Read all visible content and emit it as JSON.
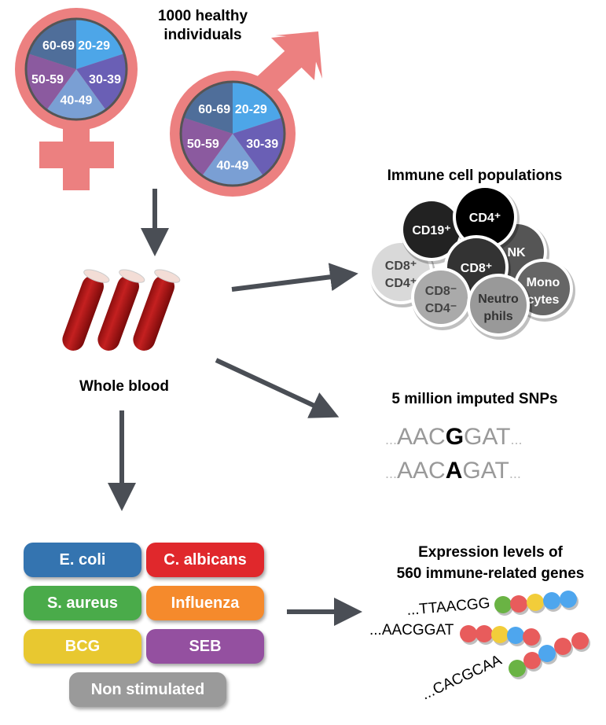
{
  "cohort": {
    "title_line1": "1000 healthy",
    "title_line2": "individuals",
    "age_groups": [
      "20-29",
      "30-39",
      "40-49",
      "50-59",
      "60-69"
    ],
    "age_colors": [
      "#4da6e8",
      "#6a5fb5",
      "#7a9fd4",
      "#8b5a9f",
      "#4f6e9a"
    ],
    "symbol_color": "#ec8080"
  },
  "blood": {
    "label": "Whole blood"
  },
  "cells": {
    "title": "Immune cell populations",
    "items": [
      {
        "l1": "CD8⁺",
        "l2": "CD4⁺",
        "fill": "#d9d9d9",
        "text": "#444"
      },
      {
        "l1": "CD19⁺",
        "l2": "",
        "fill": "#222222",
        "text": "#fff"
      },
      {
        "l1": "NK",
        "l2": "",
        "fill": "#555555",
        "text": "#fff"
      },
      {
        "l1": "CD4⁺",
        "l2": "",
        "fill": "#000000",
        "text": "#fff"
      },
      {
        "l1": "CD8⁺",
        "l2": "",
        "fill": "#333333",
        "text": "#fff"
      },
      {
        "l1": "CD8⁻",
        "l2": "CD4⁻",
        "fill": "#aaaaaa",
        "text": "#444"
      },
      {
        "l1": "Mono",
        "l2": "cytes",
        "fill": "#666666",
        "text": "#fff"
      },
      {
        "l1": "Neutro",
        "l2": "phils",
        "fill": "#999999",
        "text": "#333"
      }
    ]
  },
  "snps": {
    "title": "5 million imputed SNPs",
    "seq1": {
      "pre": "AAC",
      "allele": "G",
      "post": "GAT"
    },
    "seq2": {
      "pre": "AAC",
      "allele": "A",
      "post": "GAT"
    },
    "ellipsis": "..."
  },
  "stimuli": [
    {
      "label": "E. coli",
      "color": "#3474b0"
    },
    {
      "label": "C. albicans",
      "color": "#e0282c"
    },
    {
      "label": "S. aureus",
      "color": "#4aab4a"
    },
    {
      "label": "Influenza",
      "color": "#f58a2c"
    },
    {
      "label": "BCG",
      "color": "#e8c830"
    },
    {
      "label": "SEB",
      "color": "#9450a0"
    },
    {
      "label": "Non stimulated",
      "color": "#9a9a9a"
    }
  ],
  "expression": {
    "title_line1": "Expression levels of",
    "title_line2": "560 immune-related genes",
    "seqs": [
      "...TTAACGG",
      "...AACGGAT",
      "...CACGCAA"
    ],
    "bead_colors": {
      "green": "#6ab344",
      "red": "#e85c5c",
      "yellow": "#f2cd3a",
      "blue": "#4ea6ee"
    }
  }
}
